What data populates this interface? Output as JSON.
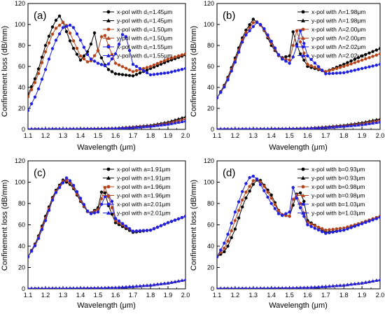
{
  "chart_data": [
    {
      "type": "line",
      "panel_label": "(a)",
      "xlabel": "Wavelength (μm)",
      "ylabel": "Confinement loss (dB/mm)",
      "xlim": [
        1.1,
        2.0
      ],
      "ylim": [
        0,
        120
      ],
      "xticks": [
        "1.1",
        "1.2",
        "1.3",
        "1.4",
        "1.5",
        "1.6",
        "1.7",
        "1.8",
        "1.9",
        "2.0"
      ],
      "yticks": [
        "0",
        "20",
        "40",
        "60",
        "80",
        "100",
        "120"
      ],
      "grid": false,
      "legend_position": "top-right",
      "series": [
        {
          "name": "x-pol with d₁=1.45μm",
          "color": "#000000",
          "marker": "circle",
          "x": [
            1.1,
            1.15,
            1.2,
            1.25,
            1.28,
            1.3,
            1.35,
            1.4,
            1.45,
            1.48,
            1.5,
            1.55,
            1.6,
            1.7,
            1.8,
            1.9,
            2.0
          ],
          "y": [
            33,
            52,
            80,
            102,
            108,
            102,
            80,
            66,
            76,
            92,
            75,
            58,
            53,
            51,
            58,
            65,
            71
          ]
        },
        {
          "name": "y-pol with d₁=1.45μm",
          "color": "#000000",
          "marker": "triangle",
          "x": [
            1.1,
            1.3,
            1.5,
            1.6,
            1.7,
            1.8,
            1.9,
            2.0
          ],
          "y": [
            0.5,
            0.6,
            0.8,
            1.3,
            2.5,
            4,
            7,
            12
          ]
        },
        {
          "name": "x-pol with d₁=1.50μm",
          "color": "#b5441a",
          "marker": "circle",
          "x": [
            1.1,
            1.15,
            1.2,
            1.25,
            1.3,
            1.32,
            1.35,
            1.4,
            1.45,
            1.5,
            1.53,
            1.55,
            1.6,
            1.7,
            1.8,
            1.9,
            2.0
          ],
          "y": [
            31,
            48,
            74,
            95,
            102,
            99,
            88,
            70,
            63,
            75,
            95,
            84,
            63,
            55,
            60,
            67,
            72
          ]
        },
        {
          "name": "y-pol with d₁=1.50μm",
          "color": "#b5441a",
          "marker": "triangle",
          "x": [
            1.1,
            1.3,
            1.5,
            1.6,
            1.7,
            1.8,
            1.9,
            2.0
          ],
          "y": [
            0.5,
            0.6,
            0.8,
            1.2,
            2.2,
            3.5,
            6,
            10
          ]
        },
        {
          "name": "x-pol with d₁=1.55μm",
          "color": "#2020e0",
          "marker": "circle",
          "x": [
            1.1,
            1.15,
            1.2,
            1.25,
            1.3,
            1.35,
            1.4,
            1.45,
            1.5,
            1.55,
            1.6,
            1.65,
            1.7,
            1.8,
            1.9,
            2.0
          ],
          "y": [
            18,
            34,
            57,
            82,
            97,
            100,
            85,
            68,
            63,
            60,
            72,
            95,
            62,
            52,
            54,
            58
          ]
        },
        {
          "name": "y-pol with d₁=1.55μm",
          "color": "#2020e0",
          "marker": "triangle",
          "x": [
            1.1,
            1.3,
            1.5,
            1.6,
            1.7,
            1.8,
            1.9,
            2.0
          ],
          "y": [
            0.5,
            0.6,
            0.7,
            1,
            1.8,
            3,
            5,
            8
          ]
        }
      ]
    },
    {
      "type": "line",
      "panel_label": "(b)",
      "xlabel": "Wavelength (μm)",
      "ylabel": "Confinement loss (dB/mm)",
      "xlim": [
        1.1,
        2.0
      ],
      "ylim": [
        0,
        120
      ],
      "xticks": [
        "1.1",
        "1.2",
        "1.3",
        "1.4",
        "1.5",
        "1.6",
        "1.7",
        "1.8",
        "1.9",
        "2.0"
      ],
      "yticks": [
        "0",
        "20",
        "40",
        "60",
        "80",
        "100",
        "120"
      ],
      "grid": false,
      "legend_position": "top-right",
      "series": [
        {
          "name": "x-pol with Λ=1.98μm",
          "color": "#000000",
          "marker": "circle",
          "x": [
            1.1,
            1.15,
            1.2,
            1.25,
            1.3,
            1.35,
            1.4,
            1.45,
            1.5,
            1.52,
            1.55,
            1.6,
            1.7,
            1.8,
            1.9,
            2.0
          ],
          "y": [
            30,
            45,
            68,
            92,
            105,
            98,
            80,
            68,
            70,
            93,
            75,
            60,
            55,
            62,
            70,
            77
          ]
        },
        {
          "name": "y-pol with Λ=1.98μm",
          "color": "#000000",
          "marker": "triangle",
          "x": [
            1.1,
            1.3,
            1.5,
            1.6,
            1.7,
            1.8,
            1.9,
            2.0
          ],
          "y": [
            0.5,
            0.6,
            0.8,
            1.3,
            2.5,
            4,
            6.5,
            10
          ]
        },
        {
          "name": "x-pol with Λ=2.00μm",
          "color": "#b5441a",
          "marker": "circle",
          "x": [
            1.1,
            1.15,
            1.2,
            1.25,
            1.31,
            1.35,
            1.4,
            1.45,
            1.5,
            1.54,
            1.57,
            1.6,
            1.7,
            1.8,
            1.9,
            2.0
          ],
          "y": [
            30,
            44,
            66,
            90,
            104,
            98,
            82,
            68,
            66,
            94,
            78,
            62,
            55,
            60,
            66,
            72
          ]
        },
        {
          "name": "y-pol with Λ=2.00μm",
          "color": "#b5441a",
          "marker": "triangle",
          "x": [
            1.1,
            1.3,
            1.5,
            1.6,
            1.7,
            1.8,
            1.9,
            2.0
          ],
          "y": [
            0.5,
            0.6,
            0.8,
            1.2,
            2.2,
            3.5,
            5.5,
            8.5
          ]
        },
        {
          "name": "x-pol with Λ=2.02μm",
          "color": "#2020e0",
          "marker": "circle",
          "x": [
            1.1,
            1.15,
            1.2,
            1.25,
            1.32,
            1.35,
            1.4,
            1.45,
            1.5,
            1.53,
            1.56,
            1.6,
            1.7,
            1.8,
            1.9,
            2.0
          ],
          "y": [
            30,
            43,
            64,
            88,
            102,
            99,
            84,
            68,
            63,
            72,
            94,
            70,
            53,
            54,
            58,
            62
          ]
        },
        {
          "name": "y-pol with Λ=2.02μm",
          "color": "#2020e0",
          "marker": "triangle",
          "x": [
            1.1,
            1.3,
            1.5,
            1.6,
            1.7,
            1.8,
            1.9,
            2.0
          ],
          "y": [
            0.5,
            0.6,
            0.7,
            1,
            1.8,
            3,
            4.5,
            7
          ]
        }
      ]
    },
    {
      "type": "line",
      "panel_label": "(c)",
      "xlabel": "Wavelength (μm)",
      "ylabel": "Confinement loss (dB/mm)",
      "xlim": [
        1.1,
        2.0
      ],
      "ylim": [
        0,
        120
      ],
      "xticks": [
        "1.1",
        "1.2",
        "1.3",
        "1.4",
        "1.5",
        "1.6",
        "1.7",
        "1.8",
        "1.9",
        "2.0"
      ],
      "yticks": [
        "0",
        "20",
        "40",
        "60",
        "80",
        "100",
        "120"
      ],
      "grid": false,
      "legend_position": "top-right",
      "series": [
        {
          "name": "x-pol with a=1.91μm",
          "color": "#000000",
          "marker": "circle",
          "x": [
            1.1,
            1.15,
            1.2,
            1.25,
            1.3,
            1.35,
            1.4,
            1.45,
            1.5,
            1.53,
            1.55,
            1.6,
            1.7,
            1.8,
            1.9,
            2.0
          ],
          "y": [
            30,
            45,
            68,
            90,
            102,
            97,
            82,
            70,
            76,
            98,
            82,
            62,
            53,
            55,
            62,
            68
          ]
        },
        {
          "name": "y-pol with a=1.91μm",
          "color": "#000000",
          "marker": "triangle",
          "x": [
            1.1,
            1.3,
            1.5,
            1.6,
            1.7,
            1.8,
            1.9,
            2.0
          ],
          "y": [
            0.5,
            0.6,
            0.8,
            1.2,
            2.2,
            3.5,
            5.5,
            8.5
          ]
        },
        {
          "name": "x-pol with a=1.96μm",
          "color": "#b5441a",
          "marker": "circle",
          "x": [
            1.1,
            1.15,
            1.2,
            1.25,
            1.31,
            1.35,
            1.4,
            1.45,
            1.5,
            1.54,
            1.57,
            1.6,
            1.7,
            1.8,
            1.9,
            2.0
          ],
          "y": [
            30,
            44,
            66,
            89,
            103,
            98,
            83,
            70,
            74,
            95,
            82,
            64,
            54,
            55,
            62,
            68
          ]
        },
        {
          "name": "y-pol with a=1.96μm",
          "color": "#b5441a",
          "marker": "triangle",
          "x": [
            1.1,
            1.3,
            1.5,
            1.6,
            1.7,
            1.8,
            1.9,
            2.0
          ],
          "y": [
            0.5,
            0.6,
            0.8,
            1.2,
            2.2,
            3.5,
            5.5,
            8.5
          ]
        },
        {
          "name": "x-pol with a=2.01μm",
          "color": "#2020e0",
          "marker": "circle",
          "x": [
            1.1,
            1.15,
            1.2,
            1.25,
            1.32,
            1.35,
            1.4,
            1.45,
            1.5,
            1.55,
            1.58,
            1.6,
            1.7,
            1.8,
            1.9,
            2.0
          ],
          "y": [
            30,
            43,
            64,
            88,
            104,
            100,
            85,
            70,
            72,
            90,
            82,
            66,
            54,
            55,
            62,
            68
          ]
        },
        {
          "name": "y-pol with a=2.01μm",
          "color": "#2020e0",
          "marker": "triangle",
          "x": [
            1.1,
            1.3,
            1.5,
            1.6,
            1.7,
            1.8,
            1.9,
            2.0
          ],
          "y": [
            0.5,
            0.6,
            0.8,
            1.2,
            2.2,
            3.5,
            5.5,
            8.5
          ]
        }
      ]
    },
    {
      "type": "line",
      "panel_label": "(d)",
      "xlabel": "Wavelength (μm)",
      "ylabel": "Confinement loss (dB/mm)",
      "xlim": [
        1.1,
        2.0
      ],
      "ylim": [
        0,
        120
      ],
      "xticks": [
        "1.1",
        "1.2",
        "1.3",
        "1.4",
        "1.5",
        "1.6",
        "1.7",
        "1.8",
        "1.9",
        "2.0"
      ],
      "yticks": [
        "0",
        "20",
        "40",
        "60",
        "80",
        "100",
        "120"
      ],
      "grid": false,
      "legend_position": "top-right",
      "series": [
        {
          "name": "x-pol with b=0.93μm",
          "color": "#000000",
          "marker": "circle",
          "x": [
            1.1,
            1.15,
            1.2,
            1.25,
            1.3,
            1.33,
            1.4,
            1.45,
            1.5,
            1.55,
            1.58,
            1.6,
            1.7,
            1.8,
            1.9,
            2.0
          ],
          "y": [
            30,
            36,
            56,
            82,
            98,
            104,
            88,
            70,
            68,
            94,
            82,
            64,
            53,
            55,
            62,
            68
          ]
        },
        {
          "name": "y-pol with b=0.93μm",
          "color": "#000000",
          "marker": "triangle",
          "x": [
            1.1,
            1.3,
            1.5,
            1.6,
            1.7,
            1.8,
            1.9,
            2.0
          ],
          "y": [
            0.5,
            0.6,
            0.8,
            1.2,
            2.2,
            3.5,
            5.5,
            8.5
          ]
        },
        {
          "name": "x-pol with b=0.98μm",
          "color": "#b5441a",
          "marker": "circle",
          "x": [
            1.1,
            1.15,
            1.2,
            1.25,
            1.31,
            1.35,
            1.4,
            1.45,
            1.5,
            1.53,
            1.56,
            1.6,
            1.7,
            1.8,
            1.9,
            2.0
          ],
          "y": [
            30,
            40,
            64,
            88,
            104,
            99,
            85,
            70,
            68,
            92,
            80,
            62,
            55,
            57,
            62,
            68
          ]
        },
        {
          "name": "y-pol with b=0.98μm",
          "color": "#b5441a",
          "marker": "triangle",
          "x": [
            1.1,
            1.3,
            1.5,
            1.6,
            1.7,
            1.8,
            1.9,
            2.0
          ],
          "y": [
            0.5,
            0.6,
            0.8,
            1.2,
            2.2,
            3.5,
            5.5,
            8.5
          ]
        },
        {
          "name": "x-pol with b=1.03μm",
          "color": "#2020e0",
          "marker": "circle",
          "x": [
            1.1,
            1.15,
            1.2,
            1.25,
            1.29,
            1.32,
            1.35,
            1.4,
            1.45,
            1.5,
            1.52,
            1.55,
            1.6,
            1.7,
            1.8,
            1.9,
            2.0
          ],
          "y": [
            30,
            46,
            72,
            96,
            107,
            103,
            95,
            80,
            68,
            72,
            95,
            80,
            60,
            52,
            55,
            61,
            67
          ]
        },
        {
          "name": "y-pol with b=1.03μm",
          "color": "#2020e0",
          "marker": "triangle",
          "x": [
            1.1,
            1.3,
            1.5,
            1.6,
            1.7,
            1.8,
            1.9,
            2.0
          ],
          "y": [
            0.5,
            0.6,
            0.8,
            1.2,
            2.2,
            3.5,
            5.5,
            8.5
          ]
        }
      ]
    }
  ]
}
